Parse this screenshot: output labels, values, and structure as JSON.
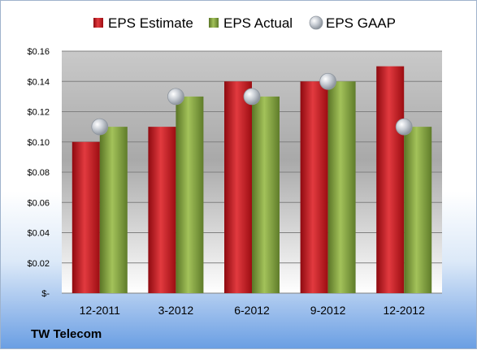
{
  "company_label": "TW Telecom",
  "chart_data": {
    "type": "bar",
    "categories": [
      "12-2011",
      "3-2012",
      "6-2012",
      "9-2012",
      "12-2012"
    ],
    "series": [
      {
        "name": "EPS Estimate",
        "kind": "bar",
        "color": "#c0141b",
        "values": [
          0.1,
          0.11,
          0.14,
          0.14,
          0.15
        ]
      },
      {
        "name": "EPS Actual",
        "kind": "bar",
        "color": "#7a9a3a",
        "values": [
          0.11,
          0.13,
          0.13,
          0.14,
          0.11
        ]
      },
      {
        "name": "EPS GAAP",
        "kind": "marker",
        "color": "#b8bec6",
        "values": [
          0.11,
          0.13,
          0.13,
          0.14,
          0.11
        ]
      }
    ],
    "ylim": [
      0,
      0.16
    ],
    "yticks": [
      0,
      0.02,
      0.04,
      0.06,
      0.08,
      0.1,
      0.12,
      0.14,
      0.16
    ],
    "ytick_labels": [
      "$-",
      "$0.02",
      "$0.04",
      "$0.06",
      "$0.08",
      "$0.10",
      "$0.12",
      "$0.14",
      "$0.16"
    ],
    "grid": true,
    "legend_position": "top"
  }
}
